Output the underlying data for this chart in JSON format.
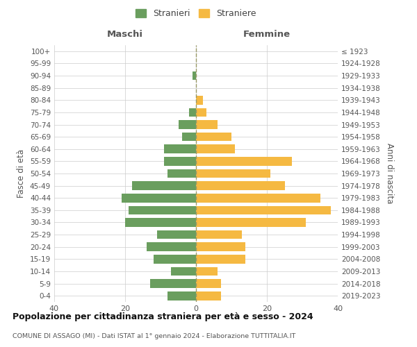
{
  "age_groups": [
    "0-4",
    "5-9",
    "10-14",
    "15-19",
    "20-24",
    "25-29",
    "30-34",
    "35-39",
    "40-44",
    "45-49",
    "50-54",
    "55-59",
    "60-64",
    "65-69",
    "70-74",
    "75-79",
    "80-84",
    "85-89",
    "90-94",
    "95-99",
    "100+"
  ],
  "birth_years": [
    "2019-2023",
    "2014-2018",
    "2009-2013",
    "2004-2008",
    "1999-2003",
    "1994-1998",
    "1989-1993",
    "1984-1988",
    "1979-1983",
    "1974-1978",
    "1969-1973",
    "1964-1968",
    "1959-1963",
    "1954-1958",
    "1949-1953",
    "1944-1948",
    "1939-1943",
    "1934-1938",
    "1929-1933",
    "1924-1928",
    "≤ 1923"
  ],
  "males": [
    8,
    13,
    7,
    12,
    14,
    11,
    20,
    19,
    21,
    18,
    8,
    9,
    9,
    4,
    5,
    2,
    0,
    0,
    1,
    0,
    0
  ],
  "females": [
    7,
    7,
    6,
    14,
    14,
    13,
    31,
    38,
    35,
    25,
    21,
    27,
    11,
    10,
    6,
    3,
    2,
    0,
    0,
    0,
    0
  ],
  "male_color": "#6a9e5e",
  "female_color": "#f5b942",
  "background_color": "#ffffff",
  "grid_color": "#cccccc",
  "title": "Popolazione per cittadinanza straniera per età e sesso - 2024",
  "subtitle": "COMUNE DI ASSAGO (MI) - Dati ISTAT al 1° gennaio 2024 - Elaborazione TUTTITALIA.IT",
  "ylabel_left": "Fasce di età",
  "ylabel_right": "Anni di nascita",
  "xlabel_left": "Maschi",
  "xlabel_right": "Femmine",
  "xlim": 40,
  "legend_labels": [
    "Stranieri",
    "Straniere"
  ],
  "dashed_line_color": "#999966"
}
